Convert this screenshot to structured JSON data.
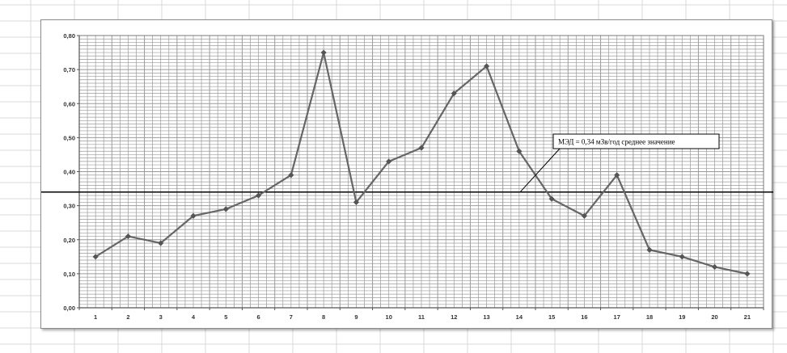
{
  "chart_data": {
    "type": "line",
    "title": "",
    "xlabel": "",
    "ylabel": "",
    "categories": [
      "1",
      "2",
      "3",
      "4",
      "5",
      "6",
      "7",
      "8",
      "9",
      "10",
      "11",
      "12",
      "13",
      "14",
      "15",
      "16",
      "17",
      "18",
      "19",
      "20",
      "21"
    ],
    "series": [
      {
        "values": [
          0.15,
          0.21,
          0.19,
          0.27,
          0.29,
          0.33,
          0.39,
          0.75,
          0.31,
          0.43,
          0.47,
          0.63,
          0.71,
          0.46,
          0.32,
          0.27,
          0.39,
          0.17,
          0.15,
          0.12,
          0.1
        ],
        "color": "#666666",
        "marker": "diamond"
      }
    ],
    "y_ticks": [
      "0,00",
      "0,10",
      "0,20",
      "0,30",
      "0,40",
      "0,50",
      "0,60",
      "0,70",
      "0,80"
    ],
    "ylim": [
      0,
      0.8
    ],
    "reference_line": {
      "value": 0.34,
      "color": "#000000"
    },
    "annotation": {
      "text": "МЭД = 0,34 мЗв/год среднее значение"
    },
    "grid": true,
    "legend": "none",
    "grid_color": "#9b9b9b"
  }
}
